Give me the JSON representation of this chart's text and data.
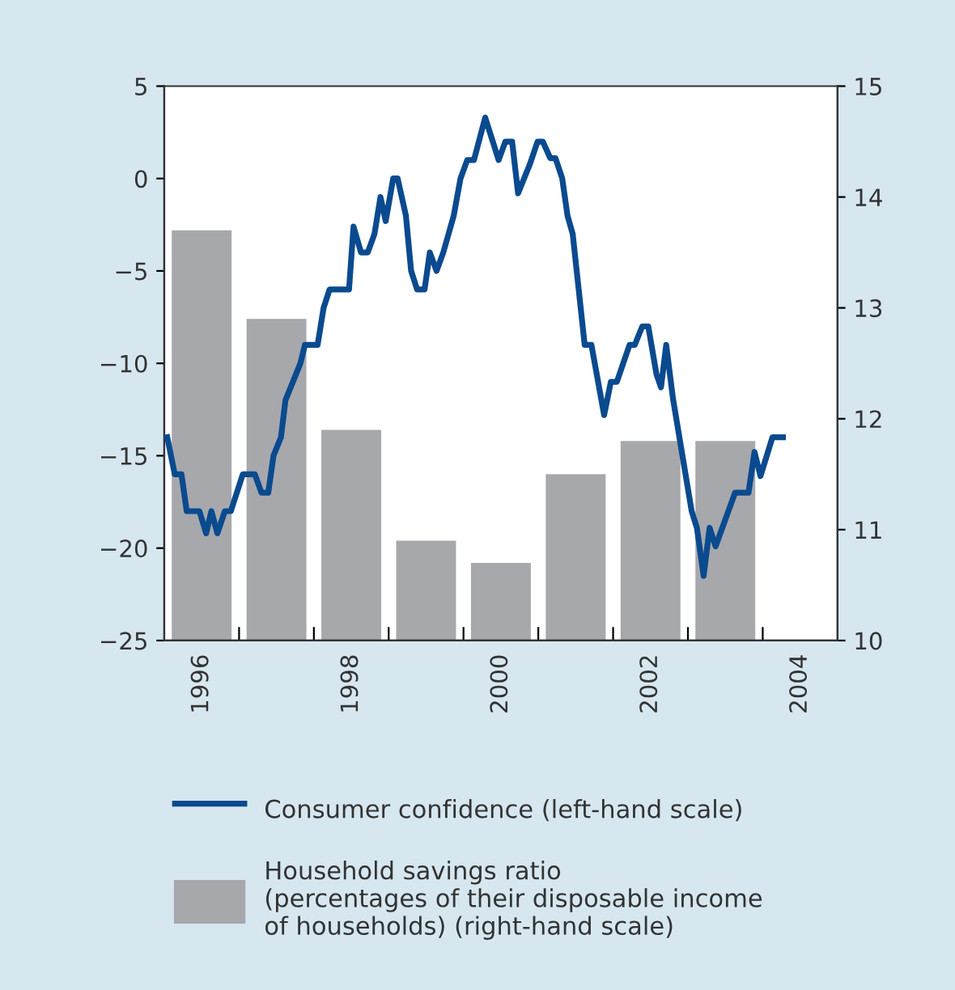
{
  "chart_data": {
    "type": "line",
    "xlim": [
      1996,
      2005
    ],
    "xticks": [
      {
        "value": 1996.5,
        "label": "1996"
      },
      {
        "value": 1997,
        "label": null
      },
      {
        "value": 1998,
        "label": null
      },
      {
        "value": 1998.5,
        "label": "1998"
      },
      {
        "value": 1999,
        "label": null
      },
      {
        "value": 2000,
        "label": null
      },
      {
        "value": 2000.5,
        "label": "2000"
      },
      {
        "value": 2001,
        "label": null
      },
      {
        "value": 2002,
        "label": null
      },
      {
        "value": 2002.5,
        "label": "2002"
      },
      {
        "value": 2003,
        "label": null
      },
      {
        "value": 2004,
        "label": null
      },
      {
        "value": 2004.5,
        "label": "2004"
      }
    ],
    "ylim": [
      -25,
      5
    ],
    "yticks": [
      -25,
      -20,
      -15,
      -10,
      -5,
      0,
      5
    ],
    "y2lim": [
      10,
      15
    ],
    "y2ticks": [
      10,
      11,
      12,
      13,
      14,
      15
    ],
    "legend": "bottom",
    "grid": false,
    "marker": "none",
    "line_style": "solid",
    "series": [
      {
        "name": "Household savings ratio\n(percentages of their disposable income\nof households) (right-hand scale)",
        "type": "bar",
        "axis": "y2",
        "color": "#a7a8ac",
        "x": [
          1996.5,
          1997.5,
          1998.5,
          1999.5,
          2000.5,
          2001.5,
          2002.5,
          2003.5
        ],
        "values": [
          13.7,
          12.9,
          11.9,
          10.9,
          10.7,
          11.5,
          11.8,
          11.8
        ]
      },
      {
        "name": "Consumer confidence (left-hand scale)",
        "axis": "y",
        "color": "#0a4a8f",
        "x": [
          1996.04,
          1996.14,
          1996.23,
          1996.3,
          1996.47,
          1996.56,
          1996.63,
          1996.71,
          1996.81,
          1996.89,
          1997.05,
          1997.21,
          1997.3,
          1997.39,
          1997.46,
          1997.56,
          1997.62,
          1997.82,
          1997.88,
          1998.05,
          1998.13,
          1998.21,
          1998.47,
          1998.53,
          1998.63,
          1998.72,
          1998.81,
          1998.89,
          1998.96,
          1999.06,
          1999.12,
          1999.23,
          1999.3,
          1999.38,
          1999.48,
          1999.55,
          1999.64,
          1999.73,
          1999.87,
          1999.96,
          2000.05,
          2000.14,
          2000.29,
          2000.47,
          2000.56,
          2000.65,
          2000.73,
          2000.89,
          2000.99,
          2001.06,
          2001.16,
          2001.23,
          2001.32,
          2001.39,
          2001.46,
          2001.62,
          2001.71,
          2001.88,
          2001.97,
          2002.05,
          2002.22,
          2002.29,
          2002.39,
          2002.47,
          2002.58,
          2002.64,
          2002.71,
          2002.8,
          2003.05,
          2003.12,
          2003.21,
          2003.29,
          2003.37,
          2003.63,
          2003.81,
          2003.89,
          2003.97,
          2004.13,
          2004.27
        ],
        "values": [
          -14,
          -16,
          -16,
          -18,
          -18,
          -19.2,
          -18,
          -19.2,
          -18,
          -18,
          -16,
          -16,
          -17,
          -17,
          -15,
          -14,
          -12,
          -10,
          -9,
          -9,
          -7,
          -6,
          -6,
          -2.6,
          -4,
          -4,
          -3,
          -1,
          -2.3,
          0,
          0,
          -2,
          -5,
          -6,
          -6,
          -4,
          -5,
          -4,
          -2,
          0,
          1,
          1,
          3.3,
          1,
          2,
          2,
          -0.8,
          0.8,
          2,
          2,
          1.1,
          1.1,
          0,
          -2,
          -3,
          -9,
          -9,
          -12.8,
          -11,
          -11,
          -9,
          -9,
          -8,
          -8,
          -10.6,
          -11.3,
          -9,
          -11.9,
          -18,
          -18.9,
          -21.5,
          -18.9,
          -19.9,
          -17,
          -17,
          -14.8,
          -16.1,
          -14,
          -14
        ]
      }
    ]
  }
}
